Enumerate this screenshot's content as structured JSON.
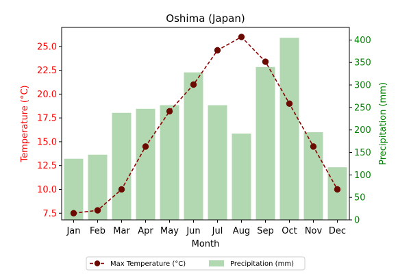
{
  "chart_data": {
    "type": "bar+line",
    "title": "Oshima (Japan)",
    "xlabel": "Month",
    "ylabel_left": "Temperature (°C)",
    "ylabel_right": "Precipitation (mm)",
    "categories": [
      "Jan",
      "Feb",
      "Mar",
      "Apr",
      "May",
      "Jun",
      "Jul",
      "Aug",
      "Sep",
      "Oct",
      "Nov",
      "Dec"
    ],
    "series": [
      {
        "name": "Max Temperature (°C)",
        "type": "line",
        "axis": "left",
        "color": "#8b0000",
        "marker_color": "#6b0a00",
        "style": "dashed",
        "values": [
          7.5,
          7.8,
          10.0,
          14.5,
          18.2,
          21.0,
          24.6,
          26.0,
          23.4,
          19.0,
          14.5,
          10.0
        ]
      },
      {
        "name": "Precipitation (mm)",
        "type": "bar",
        "axis": "right",
        "color": "#b2d8b2",
        "values": [
          136,
          145,
          238,
          247,
          255,
          328,
          255,
          192,
          340,
          405,
          195,
          117
        ]
      }
    ],
    "ylim_left": [
      6.8,
      27.0
    ],
    "ylim_right": [
      0,
      428
    ],
    "yticks_left": [
      "7.5",
      "10.0",
      "12.5",
      "15.0",
      "17.5",
      "20.0",
      "22.5",
      "25.0"
    ],
    "yticks_right": [
      "0",
      "50",
      "100",
      "150",
      "200",
      "250",
      "300",
      "350",
      "400"
    ],
    "left_axis_color": "#ff0000",
    "right_axis_color": "#008000",
    "grid": false,
    "legend_position": "bottom-center"
  }
}
